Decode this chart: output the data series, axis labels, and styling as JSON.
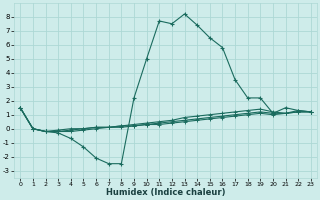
{
  "xlabel": "Humidex (Indice chaleur)",
  "background_color": "#ceecea",
  "grid_color": "#add8d5",
  "line_color": "#1a6b5e",
  "xlim": [
    -0.5,
    23.5
  ],
  "ylim": [
    -3.5,
    9.0
  ],
  "xticks": [
    0,
    1,
    2,
    3,
    4,
    5,
    6,
    7,
    8,
    9,
    10,
    11,
    12,
    13,
    14,
    15,
    16,
    17,
    18,
    19,
    20,
    21,
    22,
    23
  ],
  "yticks": [
    -3,
    -2,
    -1,
    0,
    1,
    2,
    3,
    4,
    5,
    6,
    7,
    8
  ],
  "x": [
    0,
    1,
    2,
    3,
    4,
    5,
    6,
    7,
    8,
    9,
    10,
    11,
    12,
    13,
    14,
    15,
    16,
    17,
    18,
    19,
    20,
    21,
    22,
    23
  ],
  "line1": [
    1.5,
    0.0,
    -0.2,
    -0.3,
    -0.7,
    -1.3,
    -2.1,
    -2.5,
    -2.5,
    2.2,
    5.0,
    7.7,
    7.5,
    8.2,
    7.4,
    6.5,
    5.8,
    3.5,
    2.2,
    2.2,
    1.1,
    1.5,
    1.3,
    1.2
  ],
  "line2": [
    1.5,
    0.0,
    -0.2,
    -0.2,
    -0.2,
    -0.1,
    0.0,
    0.1,
    0.2,
    0.3,
    0.4,
    0.5,
    0.6,
    0.8,
    0.9,
    1.0,
    1.1,
    1.2,
    1.3,
    1.4,
    1.2,
    1.1,
    1.3,
    1.2
  ],
  "line3": [
    1.5,
    0.0,
    -0.2,
    -0.2,
    -0.1,
    0.0,
    0.1,
    0.1,
    0.1,
    0.2,
    0.3,
    0.4,
    0.5,
    0.6,
    0.7,
    0.8,
    0.9,
    1.0,
    1.1,
    1.2,
    1.1,
    1.1,
    1.2,
    1.2
  ],
  "line4": [
    1.5,
    0.0,
    -0.2,
    -0.1,
    0.0,
    0.0,
    0.1,
    0.1,
    0.2,
    0.2,
    0.3,
    0.3,
    0.4,
    0.5,
    0.6,
    0.7,
    0.8,
    0.9,
    1.0,
    1.1,
    1.0,
    1.1,
    1.2,
    1.2
  ]
}
